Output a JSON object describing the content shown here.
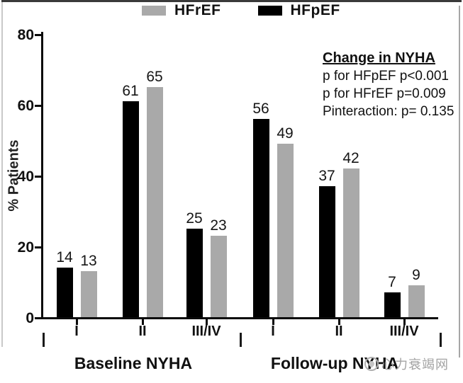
{
  "legend": [
    {
      "label": "HFrEF",
      "color": "#a9a9a9"
    },
    {
      "label": "HFpEF",
      "color": "#000000"
    }
  ],
  "annotation": {
    "title": "Change in NYHA",
    "lines": [
      "p for HFpEF p<0.001",
      "p for HFrEF p=0.009",
      "Pinteraction: p= 0.135"
    ]
  },
  "chart_data": {
    "type": "bar",
    "title": "",
    "xlabel": "",
    "ylabel": "% Patients",
    "ylim": [
      0,
      80
    ],
    "yticks": [
      0,
      20,
      40,
      60,
      80
    ],
    "legend_position": "top",
    "grid": false,
    "groups": [
      {
        "label": "Baseline NYHA",
        "categories": [
          "I",
          "II",
          "III/IV"
        ],
        "series": [
          {
            "name": "HFpEF",
            "color": "#000000",
            "values": [
              14,
              61,
              25
            ]
          },
          {
            "name": "HFrEF",
            "color": "#a9a9a9",
            "values": [
              13,
              65,
              23
            ]
          }
        ]
      },
      {
        "label": "Follow-up NYHA",
        "categories": [
          "I",
          "II",
          "III/IV"
        ],
        "series": [
          {
            "name": "HFpEF",
            "color": "#000000",
            "values": [
              56,
              37,
              7
            ]
          },
          {
            "name": "HFrEF",
            "color": "#a9a9a9",
            "values": [
              49,
              42,
              9
            ]
          }
        ]
      }
    ]
  },
  "watermark": {
    "text": "心力衰竭网"
  }
}
